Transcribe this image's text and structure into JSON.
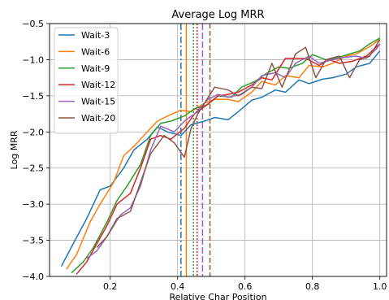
{
  "chart_data": {
    "type": "line",
    "title": "Average Log MRR",
    "xlabel": "Relative Char Position",
    "ylabel": "Log MRR",
    "xlim": [
      0.02,
      1.02
    ],
    "ylim": [
      -4.0,
      -0.5
    ],
    "xticks": [
      0.2,
      0.4,
      0.6,
      0.8,
      1.0
    ],
    "xtick_labels": [
      "0.2",
      "0.4",
      "0.6",
      "0.8",
      "1.0"
    ],
    "yticks": [
      -4.0,
      -3.5,
      -3.0,
      -2.5,
      -2.0,
      -1.5,
      -1.0,
      -0.5
    ],
    "ytick_labels": [
      "−4.0",
      "−3.5",
      "−3.0",
      "−2.5",
      "−2.0",
      "−1.5",
      "−1.0",
      "−0.5"
    ],
    "grid": true,
    "legend_position": "top-left",
    "series": [
      {
        "name": "Wait-3",
        "color": "#1f77b4",
        "x": [
          0.055,
          0.09,
          0.13,
          0.17,
          0.2,
          0.24,
          0.27,
          0.31,
          0.34,
          0.37,
          0.41,
          0.44,
          0.48,
          0.51,
          0.55,
          0.58,
          0.62,
          0.65,
          0.69,
          0.72,
          0.76,
          0.79,
          0.83,
          0.86,
          0.9,
          0.93,
          0.97,
          1.0
        ],
        "y": [
          -3.86,
          -3.55,
          -3.2,
          -2.8,
          -2.75,
          -2.5,
          -2.25,
          -2.1,
          -1.93,
          -2.0,
          -2.05,
          -1.9,
          -1.85,
          -1.8,
          -1.83,
          -1.72,
          -1.56,
          -1.52,
          -1.42,
          -1.45,
          -1.28,
          -1.33,
          -1.27,
          -1.25,
          -1.2,
          -1.1,
          -1.05,
          -0.88
        ]
      },
      {
        "name": "Wait-6",
        "color": "#ff7f0e",
        "x": [
          0.07,
          0.1,
          0.14,
          0.17,
          0.21,
          0.24,
          0.27,
          0.31,
          0.34,
          0.37,
          0.41,
          0.44,
          0.48,
          0.51,
          0.55,
          0.58,
          0.62,
          0.65,
          0.69,
          0.72,
          0.76,
          0.79,
          0.83,
          0.86,
          0.9,
          0.93,
          0.97,
          1.0
        ],
        "y": [
          -3.9,
          -3.7,
          -3.25,
          -3.0,
          -2.7,
          -2.33,
          -2.2,
          -2.0,
          -1.85,
          -1.78,
          -1.7,
          -1.72,
          -1.6,
          -1.55,
          -1.55,
          -1.58,
          -1.45,
          -1.3,
          -1.35,
          -1.22,
          -1.25,
          -1.08,
          -1.1,
          -1.05,
          -0.95,
          -0.92,
          -0.82,
          -0.72
        ]
      },
      {
        "name": "Wait-9",
        "color": "#2ca02c",
        "x": [
          0.085,
          0.12,
          0.15,
          0.19,
          0.22,
          0.25,
          0.29,
          0.32,
          0.35,
          0.38,
          0.42,
          0.45,
          0.49,
          0.52,
          0.56,
          0.59,
          0.63,
          0.66,
          0.7,
          0.73,
          0.77,
          0.8,
          0.84,
          0.87,
          0.91,
          0.94,
          0.97,
          1.0
        ],
        "y": [
          -3.95,
          -3.8,
          -3.6,
          -3.25,
          -2.95,
          -2.75,
          -2.45,
          -2.05,
          -1.88,
          -1.85,
          -1.78,
          -1.68,
          -1.62,
          -1.5,
          -1.52,
          -1.38,
          -1.3,
          -1.2,
          -1.1,
          -1.12,
          -1.05,
          -0.93,
          -1.0,
          -0.98,
          -0.92,
          -0.88,
          -0.78,
          -0.7
        ]
      },
      {
        "name": "Wait-12",
        "color": "#d62728",
        "x": [
          0.1,
          0.13,
          0.16,
          0.19,
          0.22,
          0.26,
          0.29,
          0.32,
          0.35,
          0.38,
          0.42,
          0.45,
          0.48,
          0.52,
          0.55,
          0.58,
          0.62,
          0.65,
          0.68,
          0.72,
          0.75,
          0.78,
          0.82,
          0.85,
          0.88,
          0.92,
          0.96,
          1.0
        ],
        "y": [
          -3.97,
          -3.8,
          -3.55,
          -3.3,
          -3.0,
          -2.85,
          -2.5,
          -2.1,
          -2.05,
          -2.1,
          -1.95,
          -1.75,
          -1.65,
          -1.5,
          -1.48,
          -1.45,
          -1.35,
          -1.25,
          -1.28,
          -0.98,
          -0.98,
          -0.98,
          -1.08,
          -1.0,
          -1.05,
          -1.02,
          -0.95,
          -0.78
        ]
      },
      {
        "name": "Wait-15",
        "color": "#9467bd",
        "x": [
          0.13,
          0.16,
          0.19,
          0.23,
          0.26,
          0.29,
          0.32,
          0.35,
          0.39,
          0.42,
          0.45,
          0.49,
          0.52,
          0.55,
          0.59,
          0.62,
          0.65,
          0.69,
          0.72,
          0.75,
          0.79,
          0.82,
          0.86,
          0.89,
          0.93,
          0.96,
          0.99,
          1.0
        ],
        "y": [
          -3.75,
          -3.65,
          -3.45,
          -3.15,
          -3.05,
          -2.75,
          -2.25,
          -1.92,
          -2.0,
          -1.85,
          -1.75,
          -1.55,
          -1.48,
          -1.52,
          -1.48,
          -1.38,
          -1.22,
          -1.18,
          -1.25,
          -1.05,
          -0.95,
          -1.05,
          -1.0,
          -0.97,
          -0.95,
          -0.98,
          -0.85,
          -0.78
        ]
      },
      {
        "name": "Wait-20",
        "color": "#8c564b",
        "x": [
          0.16,
          0.19,
          0.22,
          0.26,
          0.29,
          0.32,
          0.36,
          0.39,
          0.42,
          0.44,
          0.46,
          0.48,
          0.51,
          0.55,
          0.58,
          0.62,
          0.65,
          0.68,
          0.71,
          0.75,
          0.78,
          0.81,
          0.84,
          0.88,
          0.91,
          0.94,
          0.97,
          1.0
        ],
        "y": [
          -3.6,
          -3.45,
          -3.2,
          -3.1,
          -2.7,
          -2.3,
          -2.05,
          -2.15,
          -2.35,
          -1.95,
          -1.75,
          -1.6,
          -1.38,
          -1.42,
          -1.5,
          -1.38,
          -1.4,
          -1.05,
          -1.38,
          -0.92,
          -0.83,
          -1.25,
          -1.0,
          -0.95,
          -1.25,
          -1.0,
          -0.95,
          -0.72
        ]
      }
    ],
    "vlines": [
      {
        "x": 0.41,
        "color": "#1f77b4",
        "dash": "8,3,2,3"
      },
      {
        "x": 0.426,
        "color": "#ff7f0e",
        "dash": "none"
      },
      {
        "x": 0.447,
        "color": "#2ca02c",
        "dash": "2,2"
      },
      {
        "x": 0.458,
        "color": "#d62728",
        "dash": "2,2"
      },
      {
        "x": 0.474,
        "color": "#9467bd",
        "dash": "8,3"
      },
      {
        "x": 0.496,
        "color": "#8c564b",
        "dash": "6,3"
      }
    ]
  }
}
